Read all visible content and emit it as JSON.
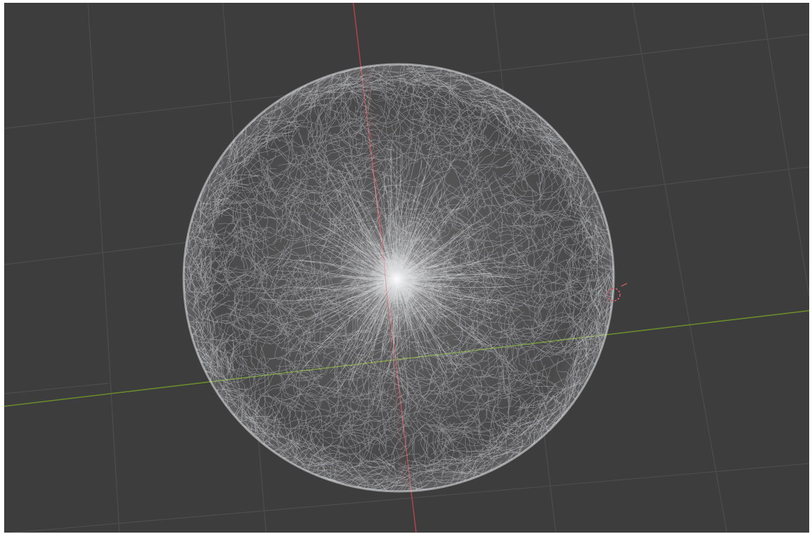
{
  "viewport": {
    "view_type": "3D viewport, top-down perspective",
    "background_color": "#3d3d3d",
    "grid_color": "#4d4d4d",
    "x_axis_color": "#b8434e",
    "y_axis_color": "#6b8c2a"
  },
  "scene": {
    "object": "hair-particle-sphere",
    "fiber_color": "#d8dadf",
    "core_color": "#f2f3f5",
    "selection_marker_color": "#e0606b"
  }
}
